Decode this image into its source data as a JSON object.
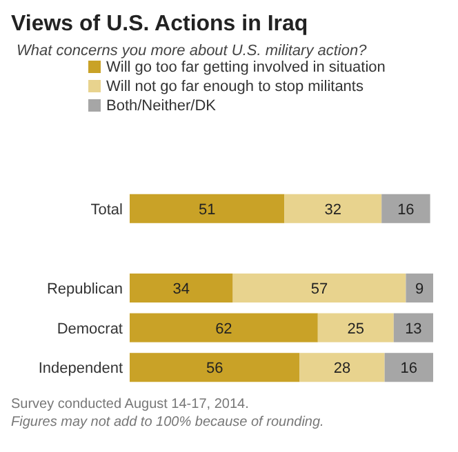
{
  "chart_data": {
    "type": "bar",
    "orientation": "horizontal",
    "stacked": true,
    "title": "Views of U.S. Actions in Iraq",
    "subtitle": "What concerns you more about U.S. military action?",
    "categories": [
      "Total",
      null,
      "Republican",
      "Democrat",
      "Independent"
    ],
    "series": [
      {
        "name": "Will go too far getting involved in situation",
        "color": "#c9a227",
        "values": [
          51,
          null,
          34,
          62,
          56
        ]
      },
      {
        "name": "Will not go far enough to stop militants",
        "color": "#e8d38e",
        "values": [
          32,
          null,
          57,
          25,
          28
        ]
      },
      {
        "name": "Both/Neither/DK",
        "color": "#a6a6a6",
        "values": [
          16,
          null,
          9,
          13,
          16
        ]
      }
    ],
    "xlim": [
      0,
      100
    ],
    "data_labels": true,
    "legend": "top",
    "annotations": [
      "Survey conducted August 14-17, 2014.",
      "Figures may not add to 100% because of rounding."
    ]
  }
}
